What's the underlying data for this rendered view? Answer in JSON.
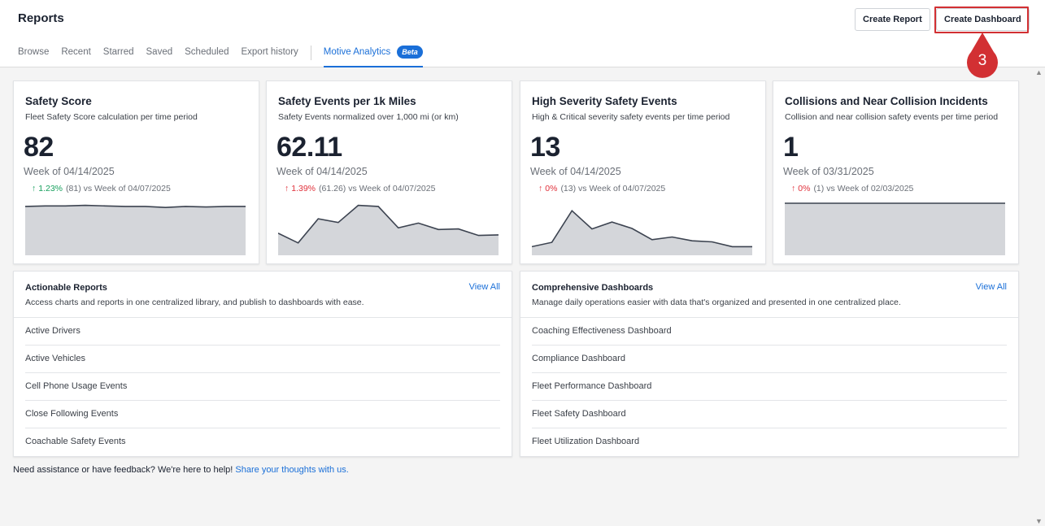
{
  "header": {
    "title": "Reports",
    "tabs": [
      "Browse",
      "Recent",
      "Starred",
      "Saved",
      "Scheduled",
      "Export history"
    ],
    "active_tab": "Motive Analytics",
    "beta_badge": "Beta",
    "create_report": "Create Report",
    "create_dashboard": "Create Dashboard",
    "step_marker": "3"
  },
  "colors": {
    "accent": "#1a6fd8",
    "positive": "#18a05e",
    "negative": "#e0303a",
    "marker": "#d23033",
    "sparkline_fill": "#d4d6da",
    "sparkline_line": "#3c4350"
  },
  "metrics": [
    {
      "title": "Safety Score",
      "subtitle": "Fleet Safety Score calculation per time period",
      "value": "82",
      "week": "Week of 04/14/2025",
      "change_pct": "1.23%",
      "change_detail": "(81) vs Week of 04/07/2025",
      "direction": "up",
      "trend": "positive",
      "sparkline": [
        88,
        89,
        89,
        90,
        89,
        88,
        88,
        86,
        88,
        87,
        88,
        88
      ]
    },
    {
      "title": "Safety Events per 1k Miles",
      "subtitle": "Safety Events normalized over 1,000 mi (or km)",
      "value": "62.11",
      "week": "Week of 04/14/2025",
      "change_pct": "1.39%",
      "change_detail": "(61.26) vs Week of 04/07/2025",
      "direction": "up",
      "trend": "negative",
      "sparkline": [
        38,
        20,
        65,
        58,
        90,
        88,
        48,
        57,
        45,
        46,
        34,
        35
      ]
    },
    {
      "title": "High Severity Safety Events",
      "subtitle": "High & Critical severity safety events per time period",
      "value": "13",
      "week": "Week of 04/14/2025",
      "change_pct": "0%",
      "change_detail": "(13) vs Week of 04/07/2025",
      "direction": "up",
      "trend": "negative",
      "sparkline": [
        13,
        21,
        80,
        46,
        59,
        47,
        26,
        31,
        24,
        22,
        13,
        13
      ]
    },
    {
      "title": "Collisions and Near Collision Incidents",
      "subtitle": "Collision and near collision safety events per time period",
      "value": "1",
      "week": "Week of 03/31/2025",
      "change_pct": "0%",
      "change_detail": "(1) vs Week of 02/03/2025",
      "direction": "up",
      "trend": "negative",
      "sparkline": [
        1,
        1,
        1,
        1,
        1,
        1,
        1,
        1,
        1,
        1,
        1,
        1
      ]
    }
  ],
  "actionable": {
    "title": "Actionable Reports",
    "description": "Access charts and reports in one centralized library, and publish to dashboards with ease.",
    "view_all": "View All",
    "items": [
      "Active Drivers",
      "Active Vehicles",
      "Cell Phone Usage Events",
      "Close Following Events",
      "Coachable Safety Events"
    ]
  },
  "dashboards": {
    "title": "Comprehensive Dashboards",
    "description": "Manage daily operations easier with data that's organized and presented in one centralized place.",
    "view_all": "View All",
    "items": [
      "Coaching Effectiveness Dashboard",
      "Compliance Dashboard",
      "Fleet Performance Dashboard",
      "Fleet Safety Dashboard",
      "Fleet Utilization Dashboard"
    ]
  },
  "footer": {
    "text": "Need assistance or have feedback? We're here to help! ",
    "link": "Share your thoughts with us."
  }
}
